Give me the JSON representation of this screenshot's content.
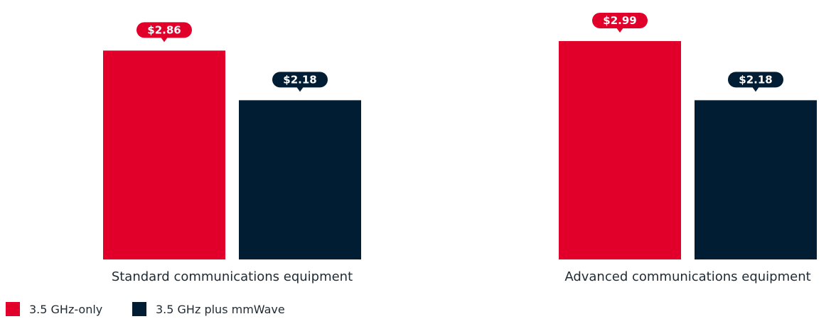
{
  "chart_data": {
    "type": "bar",
    "categories": [
      "Standard communications equipment",
      "Advanced communications equipment"
    ],
    "series": [
      {
        "name": "3.5 GHz-only",
        "values": [
          2.86,
          2.99
        ],
        "labels": [
          "$2.86",
          "$2.99"
        ],
        "color": "#e0002a"
      },
      {
        "name": "3.5 GHz plus mmWave",
        "values": [
          2.18,
          2.18
        ],
        "labels": [
          "$2.18",
          "$2.18"
        ],
        "color": "#001d33"
      }
    ],
    "ylim": [
      0,
      3.3
    ],
    "grid": false,
    "legend_position": "bottom-left"
  }
}
